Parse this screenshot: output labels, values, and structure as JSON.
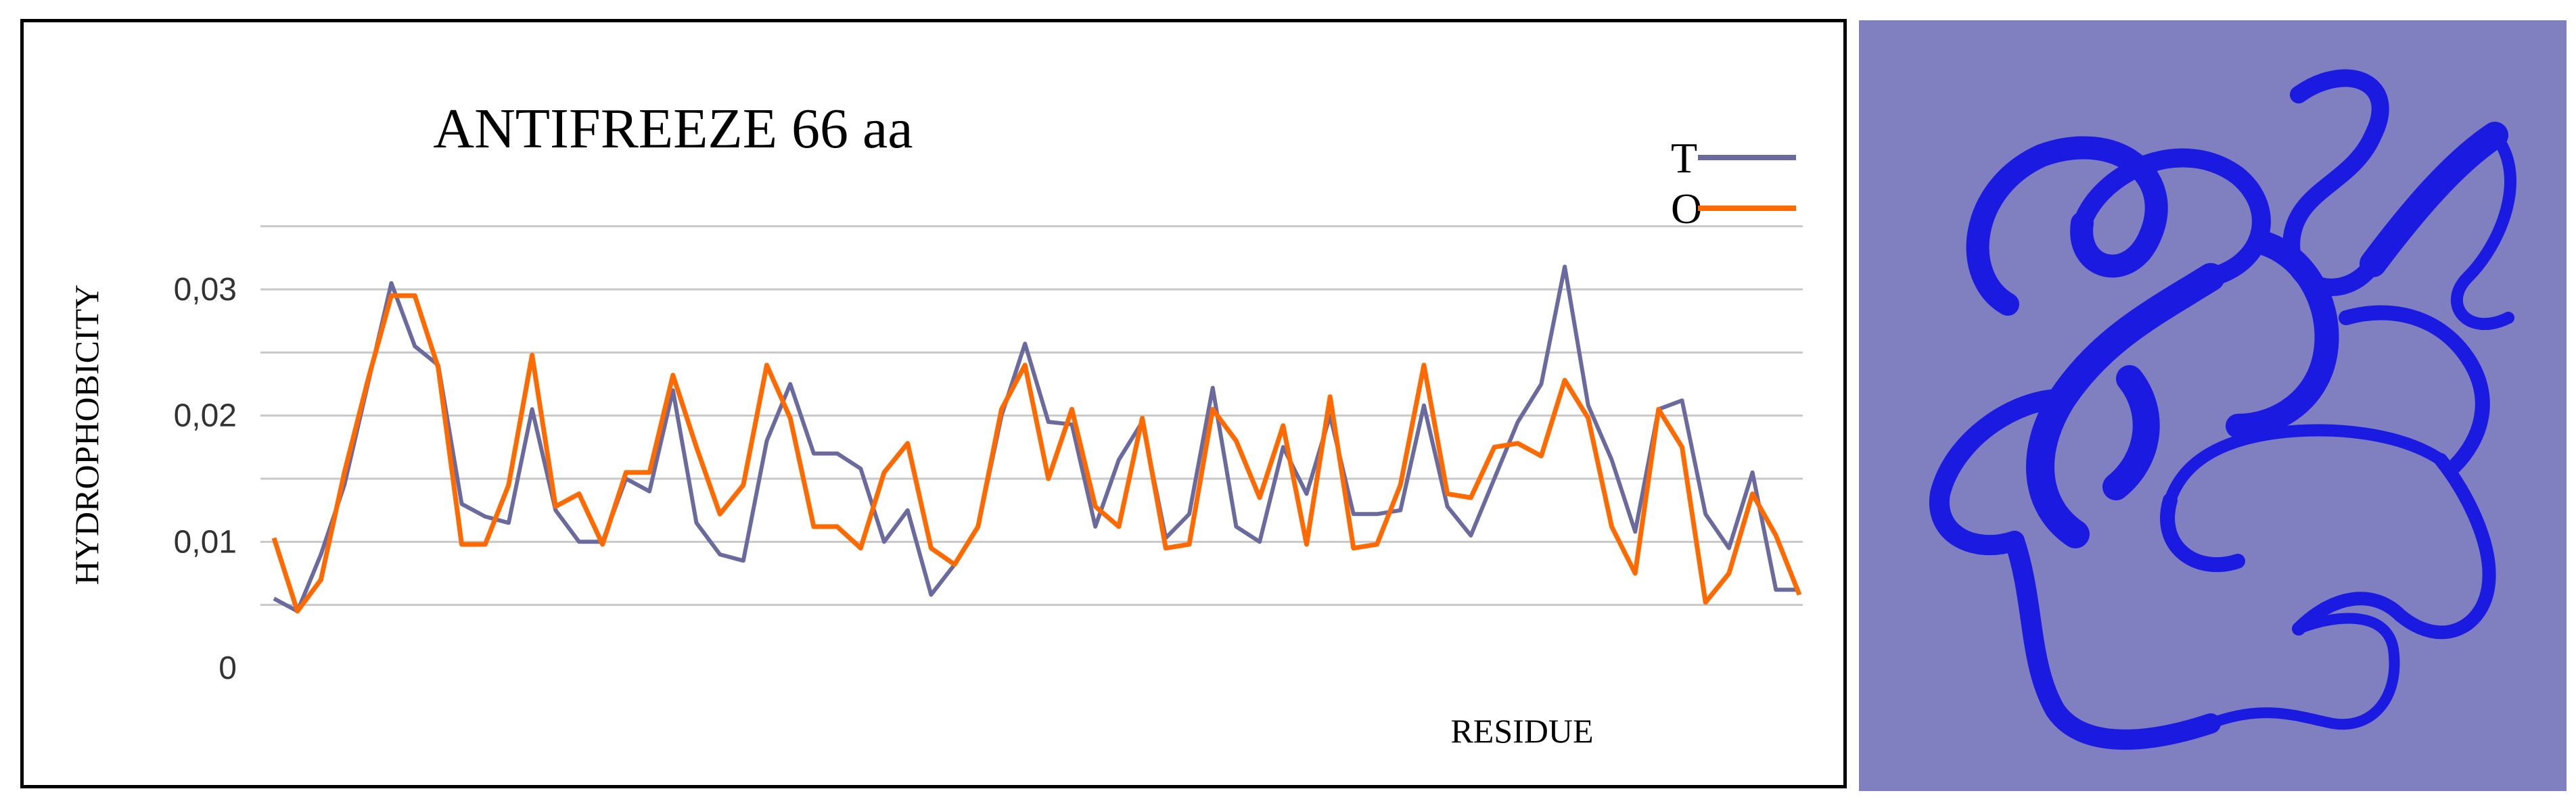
{
  "colors": {
    "series_T": "#6a6a9e",
    "series_O": "#ff6a00",
    "grid": "#c8c8c8",
    "protein_background": "#8080c0",
    "protein_ribbon": "#1a1ae0"
  },
  "chart_data": {
    "type": "line",
    "title": "ANTIFREEZE 66 aa",
    "xlabel": "RESIDUE",
    "ylabel": "HYDROPHOBICITY",
    "y_ticks": [
      "0",
      "0,01",
      "0,02",
      "0,03"
    ],
    "ylim": [
      0,
      0.036
    ],
    "grid": true,
    "legend_position": "top-right",
    "x": [
      1,
      2,
      3,
      4,
      5,
      6,
      7,
      8,
      9,
      10,
      11,
      12,
      13,
      14,
      15,
      16,
      17,
      18,
      19,
      20,
      21,
      22,
      23,
      24,
      25,
      26,
      27,
      28,
      29,
      30,
      31,
      32,
      33,
      34,
      35,
      36,
      37,
      38,
      39,
      40,
      41,
      42,
      43,
      44,
      45,
      46,
      47,
      48,
      49,
      50,
      51,
      52,
      53,
      54,
      55,
      56,
      57,
      58,
      59,
      60,
      61,
      62,
      63,
      64,
      65,
      66
    ],
    "series": [
      {
        "name": "T",
        "values": [
          0.0055,
          0.0045,
          0.009,
          0.0145,
          0.0225,
          0.0305,
          0.0255,
          0.024,
          0.013,
          0.012,
          0.0115,
          0.0205,
          0.0125,
          0.01,
          0.01,
          0.015,
          0.014,
          0.022,
          0.0115,
          0.009,
          0.0085,
          0.018,
          0.0225,
          0.017,
          0.017,
          0.0158,
          0.01,
          0.0125,
          0.0058,
          0.0082,
          0.0112,
          0.02,
          0.0257,
          0.0195,
          0.0193,
          0.0112,
          0.0165,
          0.0195,
          0.0103,
          0.0122,
          0.0222,
          0.0112,
          0.01,
          0.0175,
          0.0138,
          0.02,
          0.0122,
          0.0122,
          0.0125,
          0.0208,
          0.0128,
          0.0105,
          0.015,
          0.0195,
          0.0225,
          0.0318,
          0.0208,
          0.0165,
          0.0108,
          0.0205,
          0.0212,
          0.0122,
          0.0095,
          0.0155,
          0.0062,
          0.0062
        ]
      },
      {
        "name": "O",
        "values": [
          0.0103,
          0.0045,
          0.007,
          0.0155,
          0.0228,
          0.0295,
          0.0295,
          0.0238,
          0.0098,
          0.0098,
          0.0145,
          0.0248,
          0.0128,
          0.0138,
          0.0098,
          0.0155,
          0.0155,
          0.0232,
          0.0175,
          0.0122,
          0.0145,
          0.024,
          0.0198,
          0.0112,
          0.0112,
          0.0095,
          0.0155,
          0.0178,
          0.0095,
          0.0082,
          0.0112,
          0.0205,
          0.024,
          0.015,
          0.0205,
          0.0128,
          0.0112,
          0.0198,
          0.0095,
          0.0098,
          0.0205,
          0.018,
          0.0135,
          0.0192,
          0.0098,
          0.0215,
          0.0095,
          0.0098,
          0.0145,
          0.024,
          0.0138,
          0.0135,
          0.0175,
          0.0178,
          0.0168,
          0.0228,
          0.0198,
          0.0112,
          0.0075,
          0.0205,
          0.0175,
          0.0052,
          0.0075,
          0.0138,
          0.0105,
          0.0058
        ]
      }
    ]
  }
}
